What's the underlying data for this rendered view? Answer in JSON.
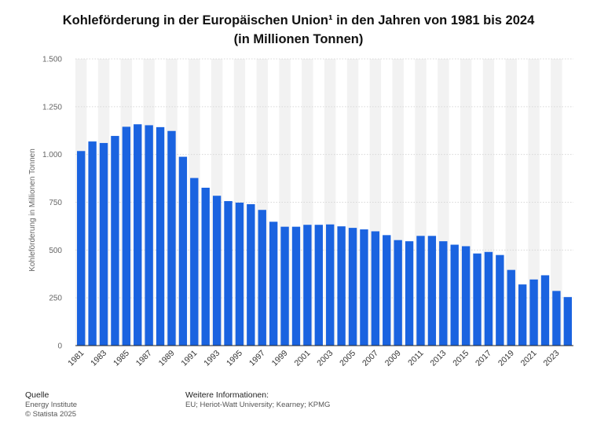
{
  "title_line1": "Kohleförderung in der Europäischen Union¹ in den Jahren von 1981 bis 2024",
  "title_line2": "(in Millionen Tonnen)",
  "footer": {
    "source_heading": "Quelle",
    "source_name": "Energy Institute",
    "copyright": "© Statista 2025",
    "info_heading": "Weitere Informationen:",
    "info_text": "EU; Heriot-Watt University; Kearney; KPMG"
  },
  "colors": {
    "bar": "#1a63e0",
    "band": "#f2f2f2",
    "grid": "#d8d8d8"
  },
  "chart_data": {
    "type": "bar",
    "ylabel": "Kohleförderung in Millionen Tonnen",
    "ylim": [
      0,
      1500
    ],
    "yticks": [
      0,
      250,
      500,
      750,
      1000,
      1250,
      1500
    ],
    "ytick_labels": [
      "0",
      "250",
      "500",
      "750",
      "1.000",
      "1.250",
      "1.500"
    ],
    "xtick_labels": [
      "1981",
      "1983",
      "1985",
      "1987",
      "1989",
      "1991",
      "1993",
      "1995",
      "1997",
      "1999",
      "2001",
      "2003",
      "2005",
      "2007",
      "2009",
      "2011",
      "2013",
      "2015",
      "2017",
      "2019",
      "2021",
      "2023"
    ],
    "categories": [
      "1981",
      "1982",
      "1983",
      "1984",
      "1985",
      "1986",
      "1987",
      "1988",
      "1989",
      "1990",
      "1991",
      "1992",
      "1993",
      "1994",
      "1995",
      "1996",
      "1997",
      "1998",
      "1999",
      "2000",
      "2001",
      "2002",
      "2003",
      "2004",
      "2005",
      "2006",
      "2007",
      "2008",
      "2009",
      "2010",
      "2011",
      "2012",
      "2013",
      "2014",
      "2015",
      "2016",
      "2017",
      "2018",
      "2019",
      "2020",
      "2021",
      "2022",
      "2023",
      "2024"
    ],
    "values": [
      1018,
      1068,
      1060,
      1097,
      1145,
      1158,
      1153,
      1143,
      1123,
      988,
      877,
      826,
      784,
      756,
      748,
      740,
      710,
      648,
      622,
      622,
      632,
      632,
      634,
      624,
      616,
      608,
      598,
      578,
      552,
      546,
      574,
      574,
      546,
      528,
      520,
      482,
      490,
      474,
      396,
      320,
      346,
      368,
      286,
      254
    ],
    "grid": true
  }
}
